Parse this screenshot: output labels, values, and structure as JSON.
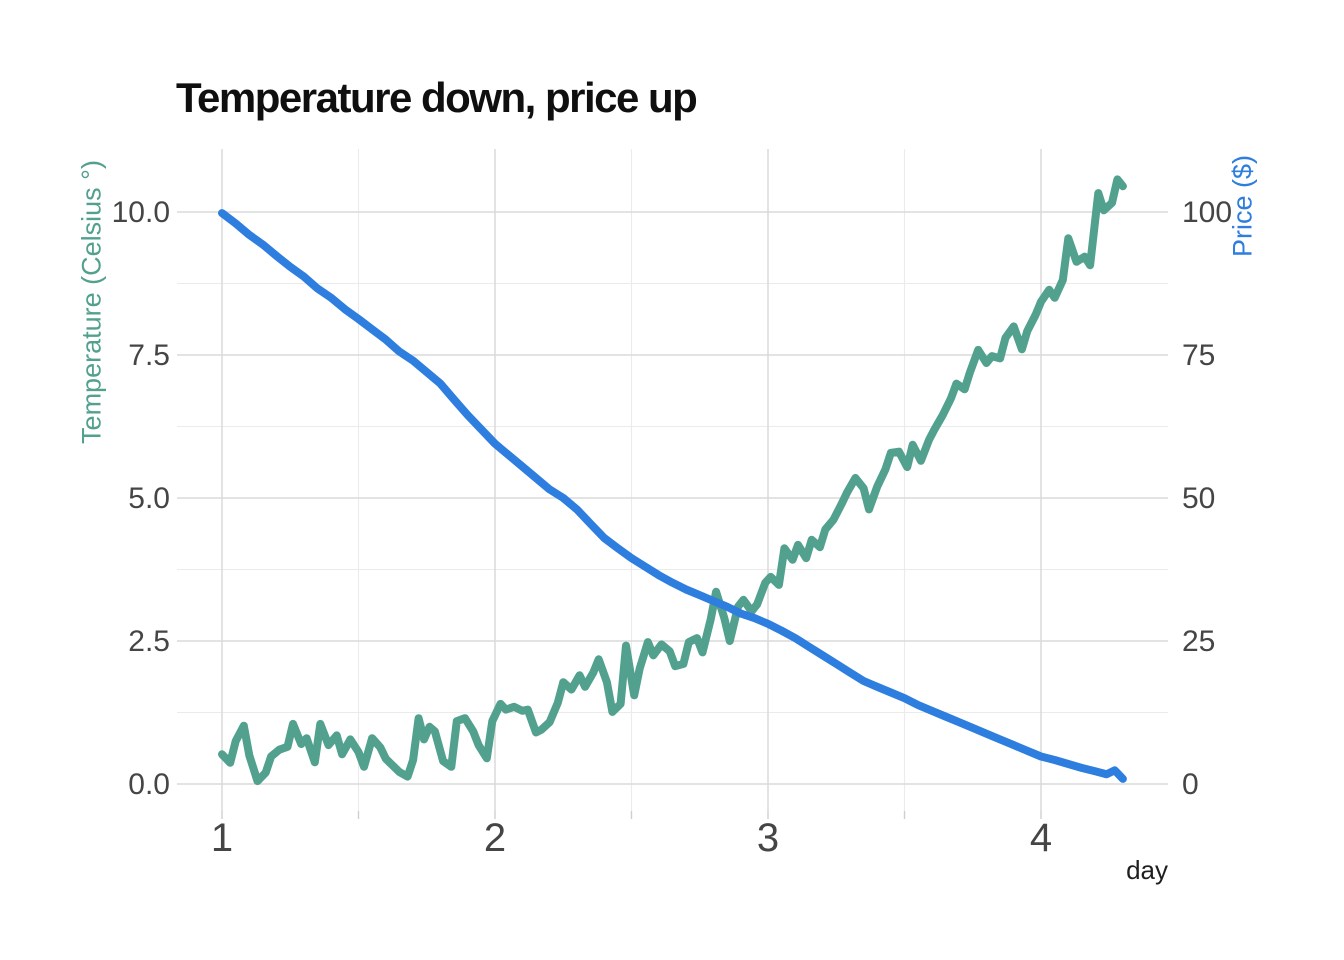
{
  "chart_data": {
    "type": "line",
    "title": "Temperature down, price up",
    "x_axis": {
      "label": "day",
      "major_ticks": [
        1,
        2,
        3,
        4
      ],
      "major_tick_labels": [
        "1",
        "2",
        "3",
        "4"
      ],
      "minor_gridlines": [
        1.5,
        2.5,
        3.5
      ],
      "range_shown": [
        0.84,
        4.47
      ]
    },
    "y_axis_left": {
      "label": "Temperature (Celsius °)",
      "tick_values": [
        0,
        2.5,
        5,
        7.5,
        10
      ],
      "tick_labels": [
        "0.0",
        "2.5",
        "5.0",
        "7.5",
        "10.0"
      ],
      "minor_gridlines": [
        1.25,
        3.75,
        6.25,
        8.75
      ],
      "range_shown": [
        -0.5,
        11.1
      ],
      "color": "#52A08E"
    },
    "y_axis_right": {
      "label": "Price ($)",
      "tick_values": [
        0,
        25,
        50,
        75,
        100
      ],
      "tick_labels": [
        "0",
        "25",
        "50",
        "75",
        "100"
      ],
      "relation": "price = temperature x 10",
      "color": "#2E7EDF"
    },
    "grid": {
      "major_color": "#dadada",
      "minor_color": "#ebebeb",
      "tick_color": "#cfcfcf",
      "ticks_on": "x-major-and-minor"
    },
    "text_colors": {
      "title": "#0f0f0f",
      "tick_labels": "#454545",
      "x_title": "#1f1f1f"
    },
    "legend": "none",
    "series": [
      {
        "name": "temperature",
        "axis": "left",
        "color": "#52A08E",
        "stroke_width": 8,
        "points": [
          [
            1.0,
            0.52
          ],
          [
            1.03,
            0.37
          ],
          [
            1.05,
            0.75
          ],
          [
            1.08,
            1.02
          ],
          [
            1.1,
            0.5
          ],
          [
            1.13,
            0.05
          ],
          [
            1.16,
            0.2
          ],
          [
            1.18,
            0.48
          ],
          [
            1.21,
            0.6
          ],
          [
            1.24,
            0.65
          ],
          [
            1.26,
            1.05
          ],
          [
            1.29,
            0.7
          ],
          [
            1.31,
            0.8
          ],
          [
            1.34,
            0.38
          ],
          [
            1.36,
            1.05
          ],
          [
            1.39,
            0.68
          ],
          [
            1.42,
            0.85
          ],
          [
            1.44,
            0.52
          ],
          [
            1.47,
            0.78
          ],
          [
            1.5,
            0.56
          ],
          [
            1.52,
            0.3
          ],
          [
            1.55,
            0.8
          ],
          [
            1.58,
            0.64
          ],
          [
            1.6,
            0.44
          ],
          [
            1.63,
            0.3
          ],
          [
            1.65,
            0.21
          ],
          [
            1.68,
            0.13
          ],
          [
            1.7,
            0.42
          ],
          [
            1.72,
            1.15
          ],
          [
            1.74,
            0.78
          ],
          [
            1.76,
            1.0
          ],
          [
            1.78,
            0.92
          ],
          [
            1.81,
            0.4
          ],
          [
            1.84,
            0.3
          ],
          [
            1.86,
            1.1
          ],
          [
            1.89,
            1.15
          ],
          [
            1.92,
            0.92
          ],
          [
            1.94,
            0.68
          ],
          [
            1.97,
            0.45
          ],
          [
            1.99,
            1.1
          ],
          [
            2.02,
            1.4
          ],
          [
            2.04,
            1.3
          ],
          [
            2.07,
            1.35
          ],
          [
            2.1,
            1.28
          ],
          [
            2.12,
            1.3
          ],
          [
            2.15,
            0.9
          ],
          [
            2.17,
            0.95
          ],
          [
            2.2,
            1.08
          ],
          [
            2.23,
            1.42
          ],
          [
            2.25,
            1.78
          ],
          [
            2.28,
            1.65
          ],
          [
            2.31,
            1.9
          ],
          [
            2.33,
            1.7
          ],
          [
            2.36,
            1.95
          ],
          [
            2.38,
            2.18
          ],
          [
            2.41,
            1.78
          ],
          [
            2.43,
            1.26
          ],
          [
            2.46,
            1.4
          ],
          [
            2.48,
            2.42
          ],
          [
            2.51,
            1.55
          ],
          [
            2.53,
            2.02
          ],
          [
            2.56,
            2.48
          ],
          [
            2.58,
            2.25
          ],
          [
            2.61,
            2.44
          ],
          [
            2.64,
            2.32
          ],
          [
            2.66,
            2.06
          ],
          [
            2.69,
            2.1
          ],
          [
            2.71,
            2.48
          ],
          [
            2.74,
            2.55
          ],
          [
            2.76,
            2.3
          ],
          [
            2.79,
            2.88
          ],
          [
            2.81,
            3.36
          ],
          [
            2.84,
            2.9
          ],
          [
            2.86,
            2.5
          ],
          [
            2.89,
            3.1
          ],
          [
            2.91,
            3.22
          ],
          [
            2.94,
            3.02
          ],
          [
            2.96,
            3.14
          ],
          [
            2.99,
            3.52
          ],
          [
            3.01,
            3.62
          ],
          [
            3.04,
            3.48
          ],
          [
            3.06,
            4.12
          ],
          [
            3.09,
            3.92
          ],
          [
            3.11,
            4.18
          ],
          [
            3.14,
            3.95
          ],
          [
            3.16,
            4.27
          ],
          [
            3.19,
            4.14
          ],
          [
            3.21,
            4.45
          ],
          [
            3.24,
            4.62
          ],
          [
            3.27,
            4.9
          ],
          [
            3.29,
            5.1
          ],
          [
            3.32,
            5.35
          ],
          [
            3.35,
            5.17
          ],
          [
            3.37,
            4.8
          ],
          [
            3.4,
            5.2
          ],
          [
            3.43,
            5.5
          ],
          [
            3.45,
            5.79
          ],
          [
            3.48,
            5.81
          ],
          [
            3.51,
            5.54
          ],
          [
            3.53,
            5.93
          ],
          [
            3.56,
            5.65
          ],
          [
            3.59,
            6.02
          ],
          [
            3.61,
            6.2
          ],
          [
            3.64,
            6.45
          ],
          [
            3.67,
            6.74
          ],
          [
            3.69,
            7.0
          ],
          [
            3.72,
            6.9
          ],
          [
            3.74,
            7.2
          ],
          [
            3.77,
            7.59
          ],
          [
            3.8,
            7.36
          ],
          [
            3.82,
            7.48
          ],
          [
            3.85,
            7.44
          ],
          [
            3.87,
            7.8
          ],
          [
            3.9,
            8.0
          ],
          [
            3.93,
            7.6
          ],
          [
            3.95,
            7.92
          ],
          [
            3.98,
            8.2
          ],
          [
            4.0,
            8.43
          ],
          [
            4.03,
            8.64
          ],
          [
            4.05,
            8.5
          ],
          [
            4.08,
            8.81
          ],
          [
            4.1,
            9.54
          ],
          [
            4.13,
            9.13
          ],
          [
            4.16,
            9.22
          ],
          [
            4.18,
            9.07
          ],
          [
            4.21,
            10.33
          ],
          [
            4.23,
            10.03
          ],
          [
            4.26,
            10.16
          ],
          [
            4.28,
            10.57
          ],
          [
            4.3,
            10.45
          ]
        ]
      },
      {
        "name": "price",
        "axis": "right",
        "color": "#2E7EDF",
        "stroke_width": 8,
        "points": [
          [
            1.0,
            99.8
          ],
          [
            1.05,
            98.0
          ],
          [
            1.1,
            96.0
          ],
          [
            1.15,
            94.3
          ],
          [
            1.2,
            92.3
          ],
          [
            1.25,
            90.4
          ],
          [
            1.3,
            88.7
          ],
          [
            1.35,
            86.6
          ],
          [
            1.4,
            85.0
          ],
          [
            1.45,
            83.0
          ],
          [
            1.5,
            81.3
          ],
          [
            1.55,
            79.5
          ],
          [
            1.6,
            77.7
          ],
          [
            1.65,
            75.6
          ],
          [
            1.7,
            74.0
          ],
          [
            1.75,
            72.0
          ],
          [
            1.8,
            70.0
          ],
          [
            1.85,
            67.2
          ],
          [
            1.9,
            64.5
          ],
          [
            1.95,
            62.0
          ],
          [
            2.0,
            59.5
          ],
          [
            2.05,
            57.5
          ],
          [
            2.1,
            55.5
          ],
          [
            2.15,
            53.5
          ],
          [
            2.2,
            51.5
          ],
          [
            2.25,
            50.0
          ],
          [
            2.3,
            48.0
          ],
          [
            2.35,
            45.5
          ],
          [
            2.4,
            43.0
          ],
          [
            2.45,
            41.2
          ],
          [
            2.5,
            39.5
          ],
          [
            2.55,
            38.0
          ],
          [
            2.6,
            36.5
          ],
          [
            2.65,
            35.2
          ],
          [
            2.7,
            34.0
          ],
          [
            2.75,
            33.0
          ],
          [
            2.8,
            32.0
          ],
          [
            2.85,
            31.0
          ],
          [
            2.9,
            29.8
          ],
          [
            2.95,
            29.0
          ],
          [
            3.0,
            28.0
          ],
          [
            3.05,
            26.8
          ],
          [
            3.1,
            25.5
          ],
          [
            3.15,
            24.0
          ],
          [
            3.2,
            22.5
          ],
          [
            3.25,
            21.0
          ],
          [
            3.3,
            19.5
          ],
          [
            3.35,
            18.0
          ],
          [
            3.4,
            17.0
          ],
          [
            3.45,
            16.0
          ],
          [
            3.5,
            15.0
          ],
          [
            3.55,
            13.8
          ],
          [
            3.6,
            12.8
          ],
          [
            3.65,
            11.8
          ],
          [
            3.7,
            10.8
          ],
          [
            3.75,
            9.8
          ],
          [
            3.8,
            8.8
          ],
          [
            3.85,
            7.8
          ],
          [
            3.9,
            6.8
          ],
          [
            3.95,
            5.8
          ],
          [
            4.0,
            4.8
          ],
          [
            4.05,
            4.2
          ],
          [
            4.1,
            3.5
          ],
          [
            4.15,
            2.8
          ],
          [
            4.2,
            2.2
          ],
          [
            4.24,
            1.7
          ],
          [
            4.27,
            2.4
          ],
          [
            4.3,
            0.9
          ]
        ]
      }
    ]
  }
}
